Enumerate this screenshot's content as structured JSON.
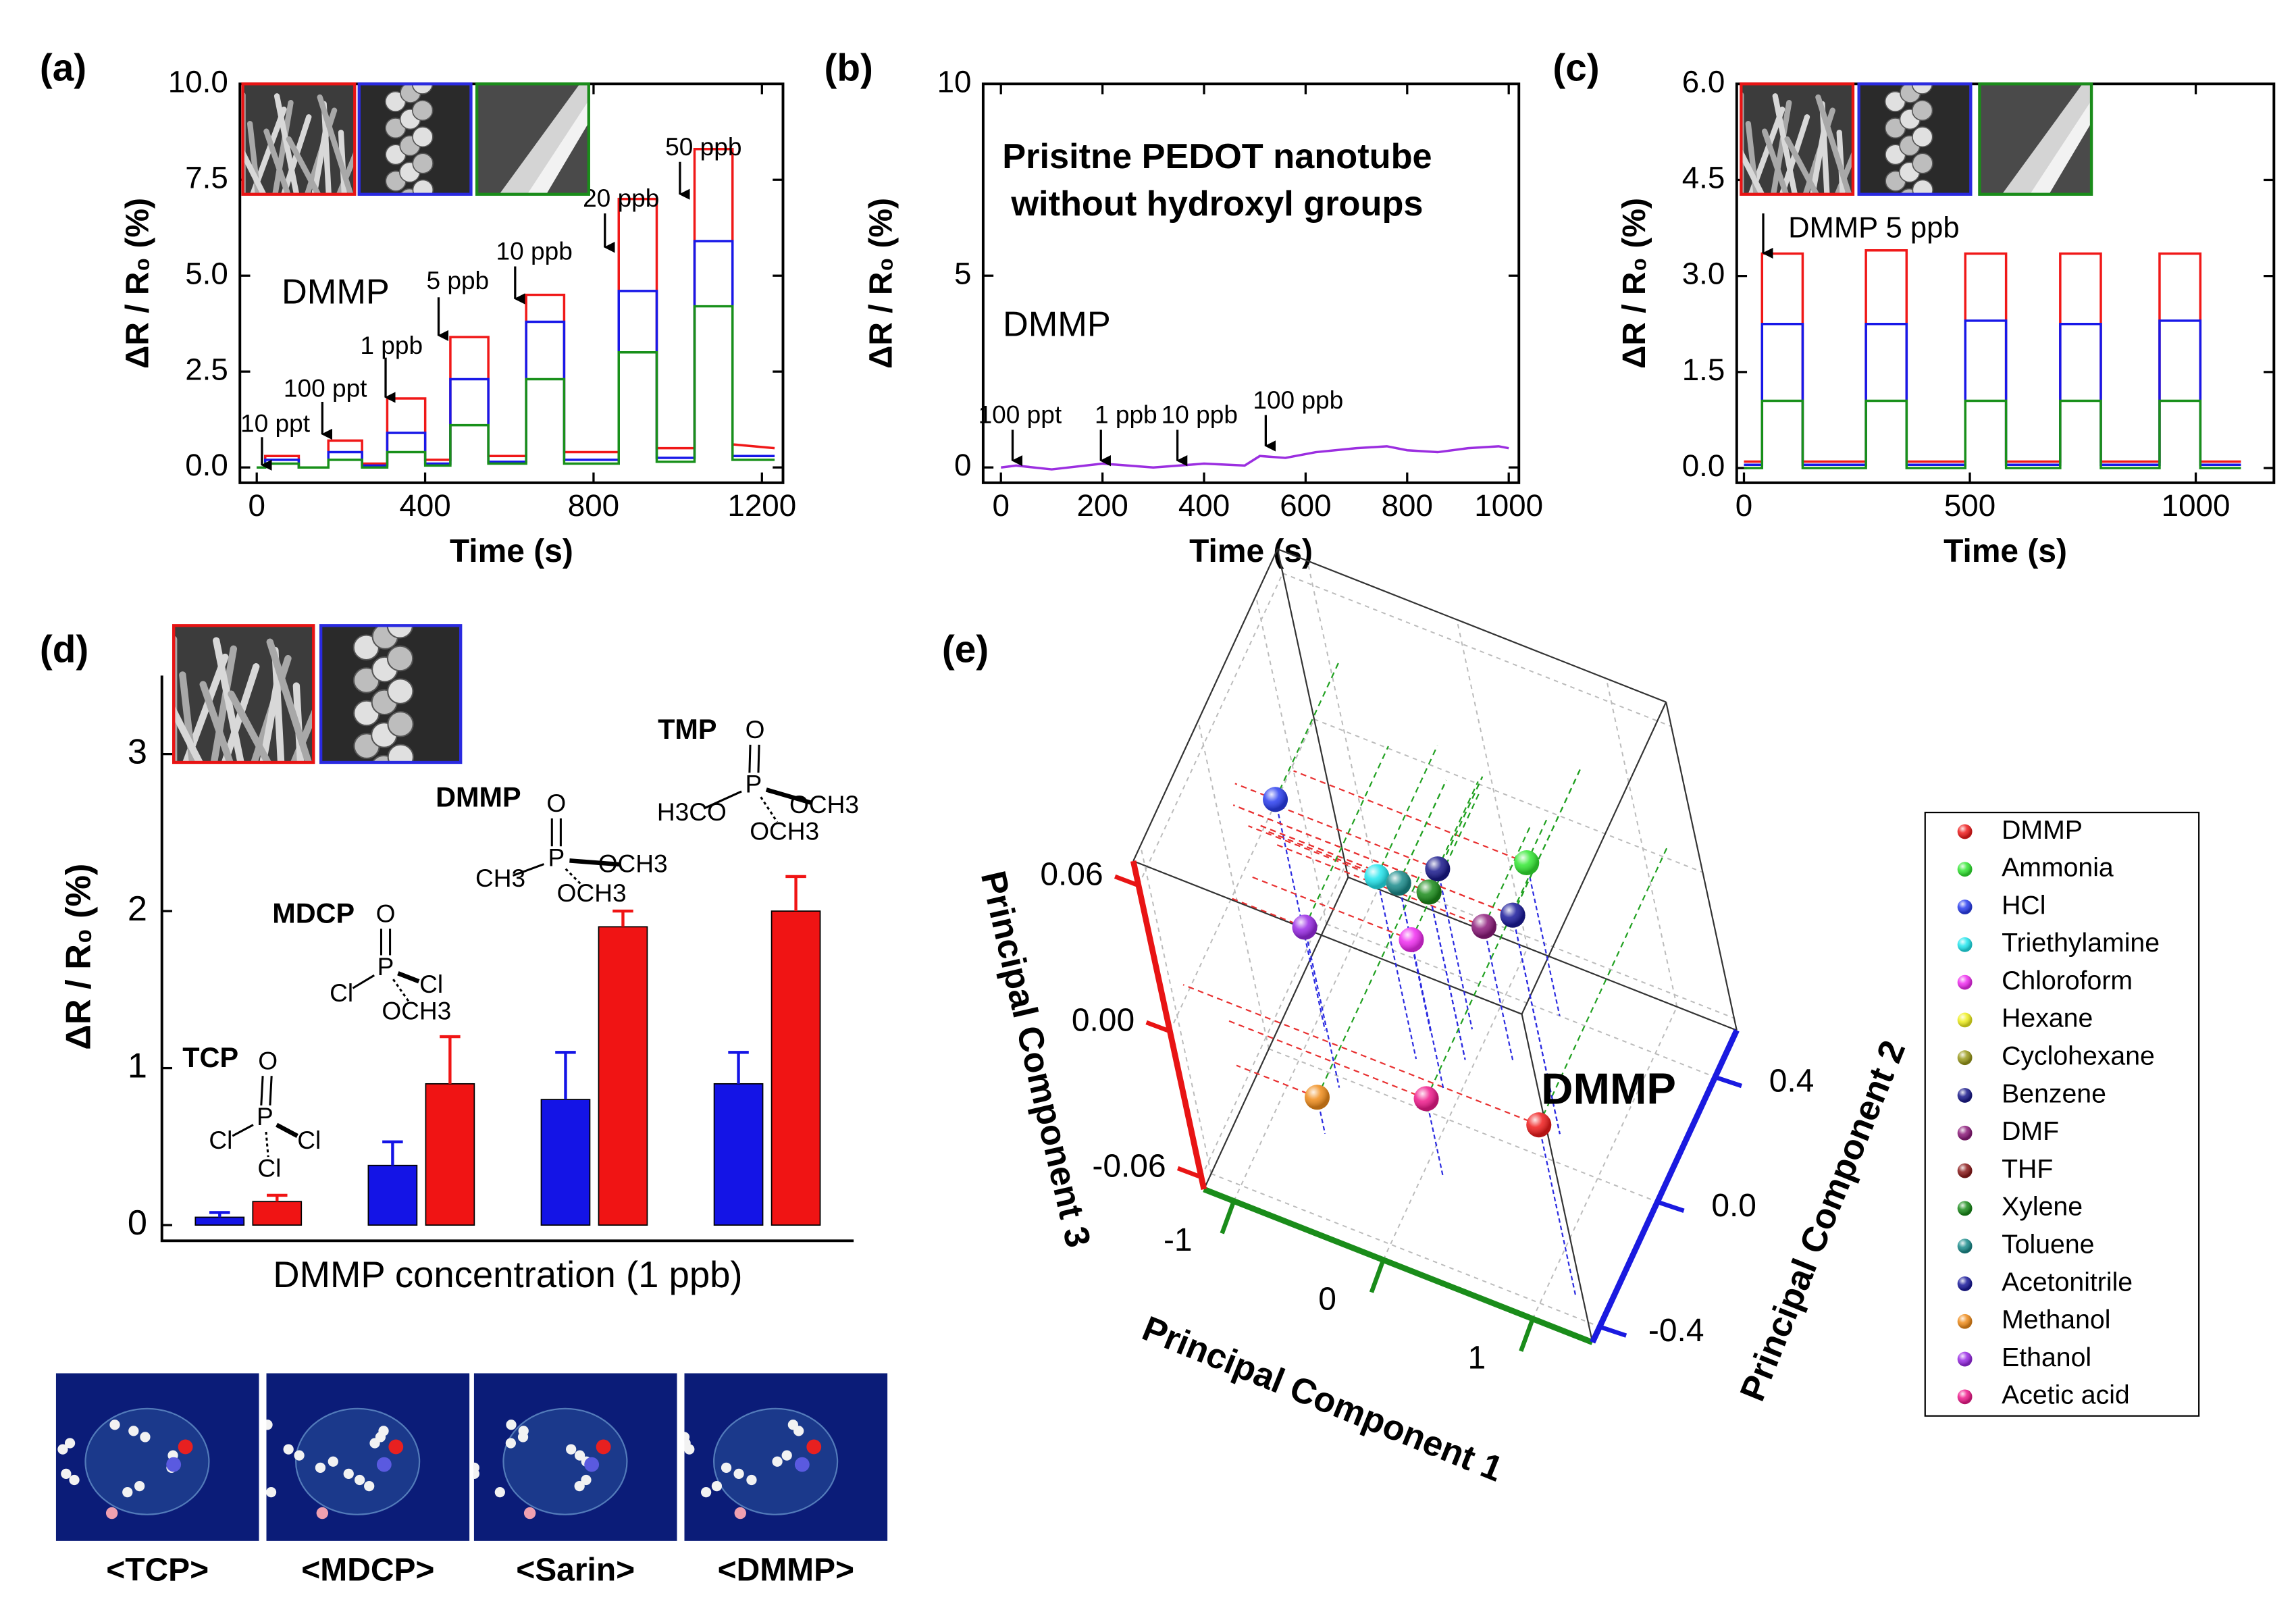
{
  "chart_data": [
    {
      "label": "(a)",
      "type": "line",
      "xlabel": "Time (s)",
      "ylabel": "ΔR / R₀ (%)",
      "xlim": [
        -40,
        1250
      ],
      "ylim": [
        -0.4,
        10
      ],
      "xticks": [
        0,
        400,
        800,
        1200
      ],
      "yticks": [
        {
          "value": 0,
          "label": "0.0"
        },
        {
          "value": 2.5,
          "label": "2.5"
        },
        {
          "value": 5,
          "label": "5.0"
        },
        {
          "value": 7.5,
          "label": "7.5"
        },
        {
          "value": 10,
          "label": "10.0"
        }
      ],
      "x": [
        0,
        20,
        20,
        100,
        100,
        170,
        170,
        250,
        250,
        310,
        310,
        400,
        400,
        460,
        460,
        550,
        550,
        640,
        640,
        730,
        730,
        860,
        860,
        950,
        950,
        1040,
        1040,
        1130,
        1130,
        1230
      ],
      "series": [
        {
          "color": "#f01818",
          "values": [
            0,
            0,
            0.3,
            0.3,
            0,
            0,
            0.7,
            0.7,
            0.1,
            0.1,
            1.8,
            1.8,
            0.2,
            0.2,
            3.4,
            3.4,
            0.3,
            0.3,
            4.5,
            4.5,
            0.4,
            0.4,
            7.0,
            7.0,
            0.5,
            0.5,
            8.3,
            8.3,
            0.6,
            0.5
          ]
        },
        {
          "color": "#1818e8",
          "values": [
            0,
            0,
            0.2,
            0.2,
            0,
            0,
            0.4,
            0.4,
            0.05,
            0.05,
            0.9,
            0.9,
            0.1,
            0.1,
            2.3,
            2.3,
            0.15,
            0.15,
            3.8,
            3.8,
            0.2,
            0.2,
            4.6,
            4.6,
            0.25,
            0.25,
            5.9,
            5.9,
            0.3,
            0.3
          ]
        },
        {
          "color": "#18901a",
          "values": [
            0,
            0,
            0.1,
            0.1,
            0,
            0,
            0.2,
            0.2,
            0,
            0,
            0.4,
            0.4,
            0.05,
            0.05,
            1.1,
            1.1,
            0.1,
            0.1,
            2.3,
            2.3,
            0.1,
            0.1,
            3.0,
            3.0,
            0.15,
            0.15,
            4.2,
            4.2,
            0.2,
            0.2
          ]
        }
      ],
      "annotations": [
        "10 ppt",
        "100 ppt",
        "1 ppb",
        "5 ppb",
        "10 ppb",
        "20 ppb",
        "50 ppb",
        "DMMP"
      ]
    },
    {
      "label": "(b)",
      "type": "line",
      "xlabel": "Time (s)",
      "ylabel": "ΔR / R₀ (%)",
      "xlim": [
        -35,
        1020
      ],
      "ylim": [
        -0.4,
        10
      ],
      "xticks": [
        0,
        200,
        400,
        600,
        800,
        1000
      ],
      "yticks": [
        0,
        5,
        10
      ],
      "x": [
        0,
        30,
        100,
        200,
        300,
        400,
        480,
        510,
        560,
        620,
        700,
        760,
        800,
        860,
        920,
        980,
        1000
      ],
      "series": [
        {
          "color": "#9b2ee0",
          "values": [
            0,
            0.05,
            -0.05,
            0.1,
            0,
            0.1,
            0.05,
            0.3,
            0.25,
            0.4,
            0.5,
            0.55,
            0.45,
            0.4,
            0.5,
            0.55,
            0.5
          ]
        }
      ],
      "annotations": [
        "100 ppt",
        "1 ppb",
        "10 ppb",
        "100 ppb",
        "DMMP"
      ],
      "note": [
        "Prisitne PEDOT nanotube",
        "without hydroxyl groups"
      ],
      "note_color": "#9b2ed0"
    },
    {
      "label": "(c)",
      "type": "line",
      "xlabel": "Time (s)",
      "ylabel": "ΔR / R₀ (%)",
      "xlim": [
        -16,
        1173
      ],
      "ylim": [
        -0.23,
        6
      ],
      "xticks": [
        0,
        500,
        1000
      ],
      "yticks": [
        {
          "value": 0,
          "label": "0.0"
        },
        {
          "value": 1.5,
          "label": "1.5"
        },
        {
          "value": 3,
          "label": "3.0"
        },
        {
          "value": 4.5,
          "label": "4.5"
        },
        {
          "value": 6,
          "label": "6.0"
        }
      ],
      "x": [
        0,
        40,
        40,
        130,
        130,
        270,
        270,
        360,
        360,
        490,
        490,
        580,
        580,
        700,
        700,
        790,
        790,
        920,
        920,
        1010,
        1010,
        1100
      ],
      "series": [
        {
          "color": "#f01818",
          "values": [
            0.1,
            0.1,
            3.35,
            3.35,
            0.1,
            0.1,
            3.4,
            3.4,
            0.1,
            0.1,
            3.35,
            3.35,
            0.1,
            0.1,
            3.35,
            3.35,
            0.1,
            0.1,
            3.35,
            3.35,
            0.1,
            0.1
          ]
        },
        {
          "color": "#1818e8",
          "values": [
            0.05,
            0.05,
            2.25,
            2.25,
            0.05,
            0.05,
            2.25,
            2.25,
            0.05,
            0.05,
            2.3,
            2.3,
            0.05,
            0.05,
            2.25,
            2.25,
            0.05,
            0.05,
            2.3,
            2.3,
            0.05,
            0.05
          ]
        },
        {
          "color": "#18901a",
          "values": [
            0,
            0,
            1.05,
            1.05,
            0,
            0,
            1.05,
            1.05,
            0,
            0,
            1.05,
            1.05,
            0,
            0,
            1.05,
            1.05,
            0,
            0,
            1.05,
            1.05,
            0,
            0
          ]
        }
      ],
      "annotations": [
        "DMMP 5 ppb"
      ]
    },
    {
      "label": "(d)",
      "type": "bar",
      "xlabel": "DMMP concentration (1 ppb)",
      "ylabel": "ΔR / R₀ (%)",
      "categories": [
        "TCP",
        "MDCP",
        "DMMP",
        "TMP"
      ],
      "category_color": "#2a2ae0",
      "ylim": [
        -0.1,
        3.5
      ],
      "yticks": [
        0,
        1,
        2,
        3
      ],
      "series": [
        {
          "color": "#1414e6",
          "values": [
            0.05,
            0.38,
            0.8,
            0.9
          ],
          "errors": [
            0.03,
            0.15,
            0.3,
            0.2
          ]
        },
        {
          "color": "#f01414",
          "values": [
            0.15,
            0.9,
            1.9,
            2.0
          ],
          "errors": [
            0.04,
            0.3,
            0.1,
            0.22
          ]
        }
      ],
      "structures": [
        [
          "O",
          "P",
          "Cl",
          "Cl",
          "Cl"
        ],
        [
          "O",
          "P",
          "Cl",
          "Cl",
          "OCH3"
        ],
        [
          "O",
          "P",
          "CH3",
          "OCH3",
          "OCH3"
        ],
        [
          "O",
          "P",
          "H3CO",
          "OCH3",
          "OCH3"
        ]
      ]
    },
    {
      "label": "(e)",
      "type": "scatter3d",
      "xlabel": "Principal Component 1",
      "ylabel": "Principal Component 2",
      "zlabel": "Principal Component 3",
      "xlim": [
        -1.2,
        1.4
      ],
      "ylim": [
        -0.45,
        0.55
      ],
      "zlim": [
        -0.065,
        0.07
      ],
      "xticks": [
        -1,
        0,
        1
      ],
      "yticks": [
        {
          "value": -0.4,
          "label": "-0.4"
        },
        {
          "value": 0,
          "label": "0.0"
        },
        {
          "value": 0.4,
          "label": "0.4"
        }
      ],
      "zticks": [
        -0.06,
        {
          "value": 0,
          "label": "0.00"
        },
        0.06
      ],
      "axis_colors": {
        "x": "#1a8c1a",
        "y": "#1a1ae0",
        "z": "#e81414"
      },
      "points": [
        {
          "name": "DMMP",
          "color": "#f01c1c",
          "x": 1.18,
          "y": -0.34,
          "z": 0.005
        },
        {
          "name": "Ammonia",
          "color": "#33e833",
          "x": 0.36,
          "y": 0.4,
          "z": -0.002
        },
        {
          "name": "HCl",
          "color": "#2a3ef0",
          "x": -0.93,
          "y": 0.11,
          "z": 0.03
        },
        {
          "name": "Triethylamine",
          "color": "#22e6ee",
          "x": -0.34,
          "y": 0.13,
          "z": 0.01
        },
        {
          "name": "Chloroform",
          "color": "#f02cf0",
          "x": -0.11,
          "y": 0.08,
          "z": -0.004
        },
        {
          "name": "Hexane",
          "color": "#f0f020",
          "x": -0.33,
          "y": 0.22,
          "z": -0.004
        },
        {
          "name": "Cyclohexane",
          "color": "#9a9a1a",
          "x": 0.67,
          "y": 0.08,
          "z": 0.025
        },
        {
          "name": "Benzene",
          "color": "#1a1a8c",
          "x": -0.1,
          "y": 0.27,
          "z": 0.001
        },
        {
          "name": "DMF",
          "color": "#8c1a7a",
          "x": 0.21,
          "y": 0.23,
          "z": -0.01
        },
        {
          "name": "THF",
          "color": "#8c1a1a",
          "x": -0.06,
          "y": 0.18,
          "z": 0.004
        },
        {
          "name": "Xylene",
          "color": "#1a8c1a",
          "x": -0.06,
          "y": 0.18,
          "z": 0.004
        },
        {
          "name": "Toluene",
          "color": "#1a8c8c",
          "x": -0.33,
          "y": 0.22,
          "z": -0.004
        },
        {
          "name": "Acetonitrile",
          "color": "#1a1a9c",
          "x": 0.67,
          "y": 0.08,
          "z": 0.025
        },
        {
          "name": "Methanol",
          "color": "#f08c1a",
          "x": -0.66,
          "y": -0.17,
          "z": -0.05
        },
        {
          "name": "Ethanol",
          "color": "#9a2ae6",
          "x": -0.7,
          "y": -0.03,
          "z": 0.001
        },
        {
          "name": "Acetic acid",
          "color": "#f01a8c",
          "x": 0.12,
          "y": -0.16,
          "z": -0.033
        }
      ],
      "annotations": [
        "DMMP"
      ],
      "annotation_color": "#9b30e0"
    }
  ],
  "models": [
    {
      "label": "<TCP>",
      "color": "#3a2ecf"
    },
    {
      "label": "<MDCP>",
      "color": "#3a2ecf"
    },
    {
      "label": "<Sarin>",
      "color": "#f01414"
    },
    {
      "label": "<DMMP>",
      "color": "#3a2ecf"
    }
  ]
}
